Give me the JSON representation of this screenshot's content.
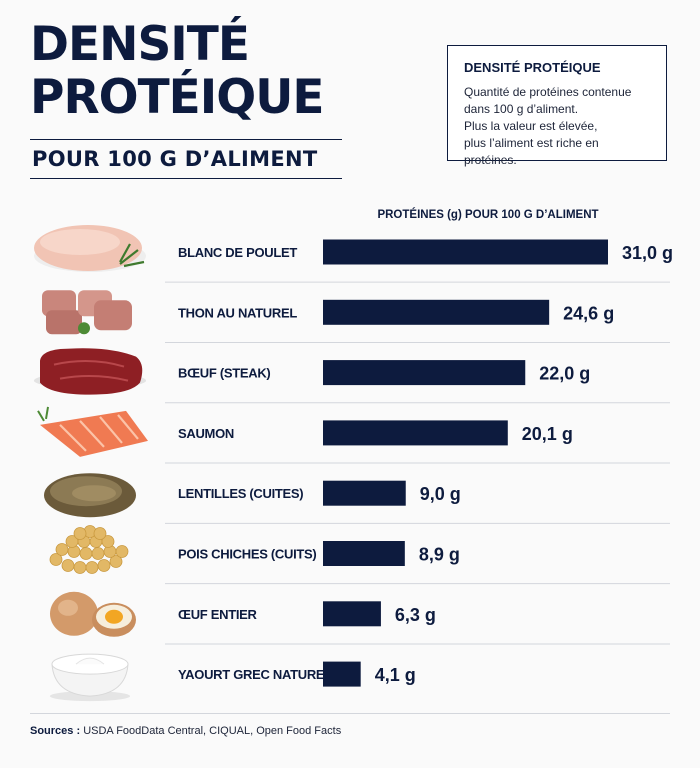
{
  "header": {
    "title_line1": "DENSITÉ",
    "title_line2": "PROTÉIQUE",
    "subtitle": "POUR 100 G D’ALIMENT"
  },
  "info_box": {
    "title": "DENSITÉ PROTÉIQUE",
    "lines": [
      "Quantité de protéines contenue",
      "dans 100 g d’aliment.",
      "Plus la valeur est élevée,",
      "plus l’aliment est riche en protéines."
    ]
  },
  "colors": {
    "bar": "#0d1b3e",
    "text": "#0d1b3e",
    "divider": "#d3d6dc",
    "background": "#fafafa"
  },
  "chart_data": {
    "type": "bar",
    "orientation": "horizontal",
    "xlabel": "PROTÉINES (g) POUR 100 G D’ALIMENT",
    "categories": [
      "BLANC DE POULET",
      "THON AU NATUREL",
      "BŒUF (STEAK)",
      "SAUMON",
      "LENTILLES (CUITES)",
      "POIS CHICHES (CUITS)",
      "ŒUF ENTIER",
      "YAOURT GREC NATURE"
    ],
    "values": [
      31.0,
      24.6,
      22.0,
      20.1,
      9.0,
      8.9,
      6.3,
      4.1
    ],
    "value_labels": [
      "31,0 g",
      "24,6 g",
      "22,0 g",
      "20,1 g",
      "9,0 g",
      "8,9 g",
      "6,3 g",
      "4,1 g"
    ],
    "icons": [
      "chicken-breast-icon",
      "tuna-icon",
      "beef-steak-icon",
      "salmon-icon",
      "lentils-icon",
      "chickpeas-icon",
      "egg-icon",
      "greek-yogurt-icon"
    ],
    "xlim": [
      0,
      31.0
    ],
    "grid": false,
    "legend": "none"
  },
  "footer": {
    "sources_label": "Sources :",
    "sources_text": " USDA FoodData Central, CIQUAL, Open Food Facts"
  }
}
